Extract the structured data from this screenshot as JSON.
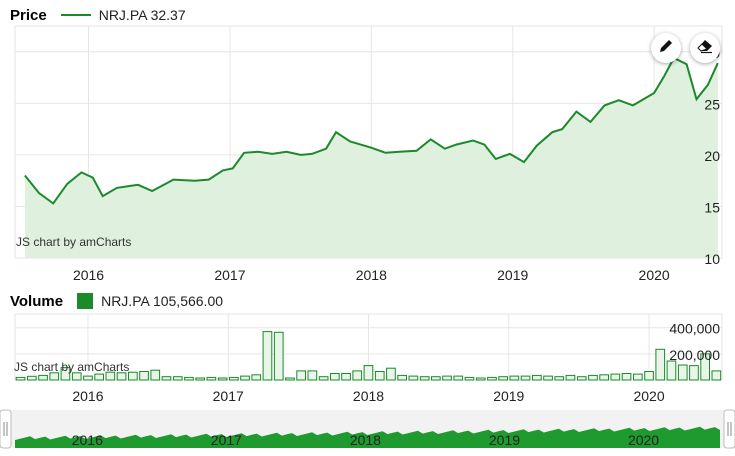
{
  "price_legend": {
    "title": "Price",
    "series": "NRJ.PA",
    "value": "32.37",
    "color": "#1a8a2a"
  },
  "volume_legend": {
    "title": "Volume",
    "series": "NRJ.PA",
    "value": "105,566.00",
    "color": "#1a8a2a"
  },
  "credit": "JS chart by amCharts",
  "toolbar": {
    "draw_icon": "pencil-icon",
    "erase_icon": "eraser-icon"
  },
  "chart_data": [
    {
      "type": "line",
      "title": "Price",
      "series": [
        {
          "name": "NRJ.PA",
          "color": "#1a8a2a"
        }
      ],
      "x": [
        2015.55,
        2015.65,
        2015.75,
        2015.85,
        2015.95,
        2016.03,
        2016.1,
        2016.2,
        2016.35,
        2016.45,
        2016.6,
        2016.75,
        2016.85,
        2016.95,
        2017.02,
        2017.1,
        2017.2,
        2017.3,
        2017.4,
        2017.5,
        2017.58,
        2017.68,
        2017.75,
        2017.85,
        2018.0,
        2018.1,
        2018.2,
        2018.32,
        2018.42,
        2018.52,
        2018.6,
        2018.72,
        2018.8,
        2018.88,
        2018.98,
        2019.08,
        2019.17,
        2019.28,
        2019.35,
        2019.45,
        2019.55,
        2019.65,
        2019.75,
        2019.85,
        2019.95,
        2020.0,
        2020.07,
        2020.14,
        2020.23,
        2020.3,
        2020.38,
        2020.45
      ],
      "y": [
        18.0,
        16.3,
        15.3,
        17.2,
        18.3,
        17.8,
        16.0,
        16.8,
        17.1,
        16.5,
        17.6,
        17.5,
        17.6,
        18.5,
        18.7,
        20.2,
        20.3,
        20.1,
        20.3,
        20.0,
        20.1,
        20.6,
        22.2,
        21.3,
        20.7,
        20.2,
        20.3,
        20.4,
        21.5,
        20.6,
        21.0,
        21.4,
        21.0,
        19.6,
        20.1,
        19.3,
        20.9,
        22.2,
        22.5,
        24.2,
        23.2,
        24.8,
        25.3,
        24.8,
        25.6,
        26.0,
        27.6,
        29.4,
        28.8,
        25.4,
        26.8,
        28.9
      ],
      "xlim": [
        2015.48,
        2020.48
      ],
      "ylim": [
        10,
        32.5
      ],
      "yticks": [
        10,
        15,
        20,
        25,
        30
      ],
      "xticks": [
        {
          "value": 2016,
          "label": "2016"
        },
        {
          "value": 2017,
          "label": "2017"
        },
        {
          "value": 2018,
          "label": "2018"
        },
        {
          "value": 2019,
          "label": "2019"
        },
        {
          "value": 2020,
          "label": "2020"
        }
      ],
      "grid": true
    },
    {
      "type": "bar",
      "title": "Volume",
      "series": [
        {
          "name": "NRJ.PA",
          "color": "#1a8a2a"
        }
      ],
      "x": [
        2015.52,
        2015.6,
        2015.68,
        2015.76,
        2015.84,
        2015.92,
        2016.0,
        2016.08,
        2016.16,
        2016.24,
        2016.32,
        2016.4,
        2016.48,
        2016.56,
        2016.64,
        2016.72,
        2016.8,
        2016.88,
        2016.96,
        2017.04,
        2017.12,
        2017.2,
        2017.28,
        2017.36,
        2017.44,
        2017.52,
        2017.6,
        2017.68,
        2017.76,
        2017.84,
        2017.92,
        2018.0,
        2018.08,
        2018.16,
        2018.24,
        2018.32,
        2018.4,
        2018.48,
        2018.56,
        2018.64,
        2018.72,
        2018.8,
        2018.88,
        2018.96,
        2019.04,
        2019.12,
        2019.2,
        2019.28,
        2019.36,
        2019.44,
        2019.52,
        2019.6,
        2019.68,
        2019.76,
        2019.84,
        2019.92,
        2020.0,
        2020.08,
        2020.16,
        2020.24,
        2020.32,
        2020.4,
        2020.48
      ],
      "values": [
        20000,
        28000,
        35000,
        55000,
        95000,
        55000,
        30000,
        45000,
        60000,
        55000,
        60000,
        65000,
        75000,
        25000,
        25000,
        20000,
        15000,
        20000,
        15000,
        20000,
        30000,
        40000,
        370000,
        365000,
        15000,
        70000,
        70000,
        25000,
        50000,
        50000,
        70000,
        110000,
        65000,
        90000,
        35000,
        30000,
        25000,
        25000,
        30000,
        30000,
        20000,
        15000,
        20000,
        25000,
        30000,
        30000,
        35000,
        30000,
        25000,
        35000,
        25000,
        35000,
        40000,
        45000,
        50000,
        45000,
        65000,
        235000,
        145000,
        115000,
        110000,
        200000,
        70000
      ],
      "xlim": [
        2015.48,
        2020.52
      ],
      "ylim": [
        0,
        505000
      ],
      "yticks": [
        {
          "value": 200000,
          "label": "200,000"
        },
        {
          "value": 400000,
          "label": "400,000"
        }
      ],
      "xticks": [
        {
          "value": 2016,
          "label": "2016"
        },
        {
          "value": 2017,
          "label": "2017"
        },
        {
          "value": 2018,
          "label": "2018"
        },
        {
          "value": 2019,
          "label": "2019"
        },
        {
          "value": 2020,
          "label": "2020"
        }
      ],
      "grid": true
    },
    {
      "type": "area",
      "title": "Navigator",
      "xlim": [
        2015.48,
        2020.55
      ],
      "xticks": [
        {
          "value": 2016,
          "label": "2016"
        },
        {
          "value": 2017,
          "label": "2017"
        },
        {
          "value": 2018,
          "label": "2018"
        },
        {
          "value": 2019,
          "label": "2019"
        },
        {
          "value": 2020,
          "label": "2020"
        }
      ]
    }
  ]
}
